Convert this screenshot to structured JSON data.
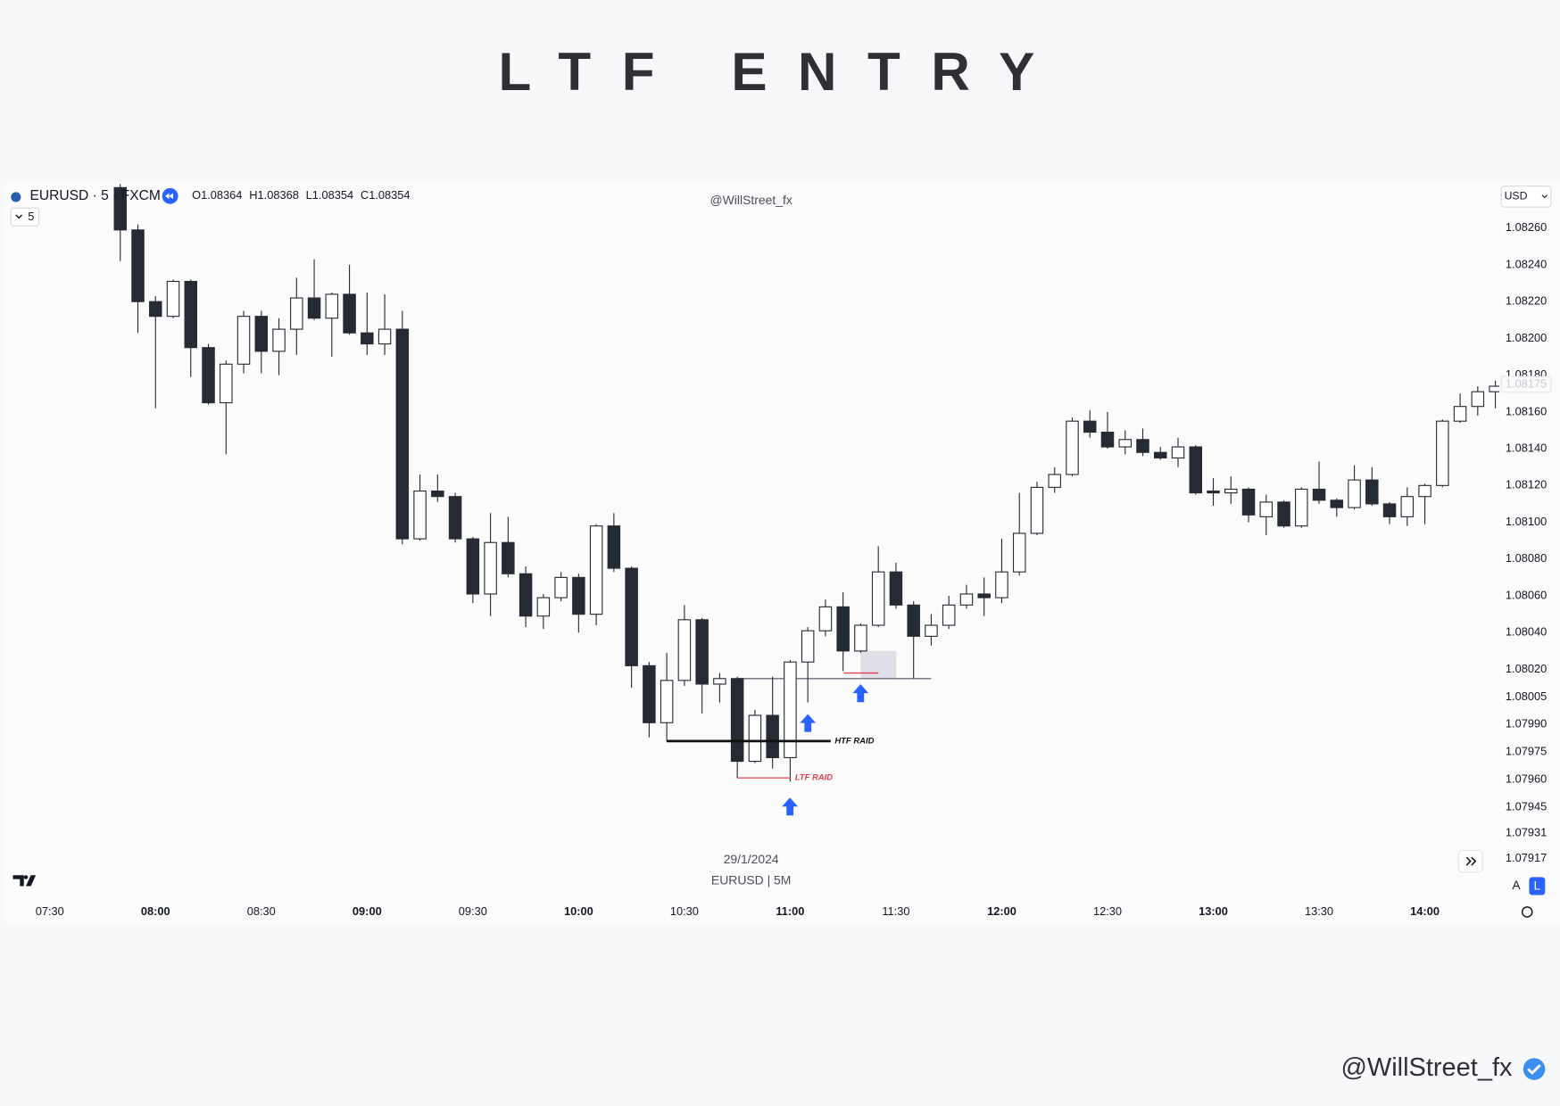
{
  "header": {
    "title": "LTF ENTRY",
    "handle": "@WillStreet_fx"
  },
  "toolbar": {
    "symbol": "EURUSD · 5 · FXCM",
    "interval": "5",
    "ohlc_legend": [
      {
        "label": "O",
        "value": 1.08364
      },
      {
        "label": "H",
        "value": 1.08368
      },
      {
        "label": "L",
        "value": 1.08354
      },
      {
        "label": "C",
        "value": 1.08354
      }
    ],
    "watermark": "@WillStreet_fx",
    "currency": "USD",
    "date": "29/1/2024",
    "pair_label": "EURUSD | 5M",
    "scale_buttons": [
      "A",
      "L"
    ]
  },
  "chart_data": {
    "type": "candlestick",
    "categories": [
      "07:30",
      null,
      null,
      null,
      null,
      null,
      "08:00",
      null,
      null,
      null,
      null,
      null,
      "08:30",
      null,
      null,
      null,
      null,
      null,
      "09:00",
      null,
      null,
      null,
      null,
      null,
      "09:30",
      null,
      null,
      null,
      null,
      null,
      "10:00",
      null,
      null,
      null,
      null,
      null,
      "10:30",
      null,
      null,
      null,
      null,
      null,
      "11:00",
      null,
      null,
      null,
      null,
      null,
      "11:30",
      null,
      null,
      null,
      null,
      null,
      "12:00",
      null,
      null,
      null,
      null,
      null,
      "12:30",
      null,
      null,
      null,
      null,
      null,
      "13:00",
      null,
      null,
      null,
      null,
      null,
      "13:30",
      null,
      null,
      null,
      null,
      null,
      "14:00",
      null,
      null,
      null,
      null
    ],
    "open": [
      null,
      null,
      null,
      null,
      1.08282,
      1.08259,
      1.0822,
      1.08212,
      1.08231,
      1.08195,
      1.08165,
      1.08186,
      1.08212,
      1.08193,
      1.08205,
      1.08222,
      1.08211,
      1.08224,
      1.08203,
      1.08197,
      1.08205,
      1.08091,
      1.08117,
      1.08114,
      1.08091,
      1.08061,
      1.08089,
      1.08072,
      1.08049,
      1.08059,
      1.0807,
      1.0805,
      1.08098,
      1.08075,
      1.08022,
      1.07991,
      1.08014,
      1.08047,
      1.08012,
      1.08015,
      1.0797,
      1.07995,
      1.07972,
      1.08024,
      1.08041,
      1.08054,
      1.0803,
      1.08044,
      1.08073,
      1.08055,
      1.08038,
      1.08044,
      1.08055,
      1.08061,
      1.08059,
      1.08073,
      1.08094,
      1.08119,
      1.08126,
      1.08155,
      1.08149,
      1.08141,
      1.08145,
      1.08138,
      1.08135,
      1.08141,
      1.08117,
      1.08116,
      1.08118,
      1.08103,
      1.08111,
      1.08098,
      1.08118,
      1.08112,
      1.08108,
      1.08123,
      1.0811,
      1.08103,
      1.08114,
      1.0812,
      1.08155,
      1.08163,
      1.08171
    ],
    "high": [
      null,
      null,
      null,
      null,
      1.08284,
      1.08262,
      1.08223,
      1.08232,
      1.08232,
      1.08197,
      1.08188,
      1.08215,
      1.08215,
      1.08211,
      1.08233,
      1.08243,
      1.08225,
      1.0824,
      1.08225,
      1.08224,
      1.08215,
      1.08126,
      1.08126,
      1.08116,
      1.08092,
      1.08105,
      1.08103,
      1.08076,
      1.08061,
      1.08073,
      1.08072,
      1.08099,
      1.08105,
      1.08076,
      1.08024,
      1.08029,
      1.08055,
      1.08048,
      1.08018,
      1.08016,
      1.07998,
      1.08016,
      1.08025,
      1.08043,
      1.08058,
      1.08062,
      1.08045,
      1.08087,
      1.08078,
      1.08057,
      1.0805,
      1.0806,
      1.08066,
      1.0807,
      1.08091,
      1.08116,
      1.08122,
      1.0813,
      1.08157,
      1.08161,
      1.0816,
      1.0815,
      1.08151,
      1.08141,
      1.08146,
      1.08142,
      1.08124,
      1.08125,
      1.08119,
      1.08115,
      1.08112,
      1.08119,
      1.08133,
      1.08113,
      1.08131,
      1.0813,
      1.08111,
      1.08119,
      1.08121,
      1.08156,
      1.0817,
      1.08174,
      1.08177
    ],
    "low": [
      null,
      null,
      null,
      null,
      1.08242,
      1.08203,
      1.08162,
      1.08211,
      1.08179,
      1.08164,
      1.08137,
      1.08181,
      1.08181,
      1.0818,
      1.08191,
      1.0821,
      1.0819,
      1.08202,
      1.08191,
      1.08191,
      1.08088,
      1.0809,
      1.08111,
      1.08089,
      1.08056,
      1.08049,
      1.0807,
      1.08043,
      1.08042,
      1.08057,
      1.0804,
      1.08044,
      1.08073,
      1.0801,
      1.07983,
      1.07981,
      1.08011,
      1.07996,
      1.08002,
      1.07961,
      1.07969,
      1.07966,
      1.07959,
      1.08002,
      1.08038,
      1.08019,
      1.08029,
      1.08043,
      1.08053,
      1.08015,
      1.08033,
      1.08042,
      1.08053,
      1.08049,
      1.08056,
      1.08071,
      1.08093,
      1.08116,
      1.08125,
      1.08146,
      1.0814,
      1.08137,
      1.08136,
      1.08134,
      1.0813,
      1.08115,
      1.08109,
      1.0811,
      1.081,
      1.08093,
      1.08097,
      1.08097,
      1.0811,
      1.08103,
      1.08107,
      1.08109,
      1.08099,
      1.08098,
      1.08099,
      1.08119,
      1.08154,
      1.08158,
      1.08162
    ],
    "close": [
      null,
      null,
      null,
      null,
      1.08259,
      1.0822,
      1.08212,
      1.08231,
      1.08195,
      1.08165,
      1.08186,
      1.08212,
      1.08193,
      1.08205,
      1.08222,
      1.08211,
      1.08224,
      1.08203,
      1.08197,
      1.08205,
      1.08091,
      1.08117,
      1.08114,
      1.08091,
      1.08061,
      1.08089,
      1.08072,
      1.08049,
      1.08059,
      1.0807,
      1.0805,
      1.08098,
      1.08075,
      1.08022,
      1.07991,
      1.08014,
      1.08047,
      1.08012,
      1.08015,
      1.0797,
      1.07995,
      1.07972,
      1.08024,
      1.08041,
      1.08054,
      1.0803,
      1.08044,
      1.08073,
      1.08055,
      1.08038,
      1.08044,
      1.08055,
      1.08061,
      1.08059,
      1.08073,
      1.08094,
      1.08119,
      1.08126,
      1.08155,
      1.08149,
      1.08141,
      1.08145,
      1.08138,
      1.08135,
      1.08141,
      1.08116,
      1.08116,
      1.08118,
      1.08104,
      1.08111,
      1.08098,
      1.08118,
      1.08112,
      1.08108,
      1.08123,
      1.0811,
      1.08103,
      1.08114,
      1.0812,
      1.08155,
      1.08163,
      1.08171,
      1.08174
    ],
    "ylim": [
      1.07897,
      1.08285
    ],
    "yticks": [
      {
        "value": 1.0826,
        "label": "1.08260"
      },
      {
        "value": 1.0824,
        "label": "1.08240"
      },
      {
        "value": 1.0822,
        "label": "1.08220"
      },
      {
        "value": 1.082,
        "label": "1.08200"
      },
      {
        "value": 1.0818,
        "label": "1.08180"
      },
      {
        "value": 1.0816,
        "label": "1.08160"
      },
      {
        "value": 1.0814,
        "label": "1.08140"
      },
      {
        "value": 1.0812,
        "label": "1.08120"
      },
      {
        "value": 1.081,
        "label": "1.08100"
      },
      {
        "value": 1.0808,
        "label": "1.08080"
      },
      {
        "value": 1.0806,
        "label": "1.08060"
      },
      {
        "value": 1.0804,
        "label": "1.08040"
      },
      {
        "value": 1.0802,
        "label": "1.08020"
      },
      1.08005,
      {
        "value": 1.0799,
        "label": "1.07990"
      },
      1.07975,
      {
        "value": 1.0796,
        "label": "1.07960"
      },
      1.07945,
      1.07931,
      1.07917
    ],
    "price_label": 1.08175,
    "grid": false,
    "up_color": "#ffffff",
    "down_color": "#262a33",
    "edge_color": "#262a33",
    "annotations": [
      {
        "text": "HTF RAID",
        "value": 1.07981,
        "color": "#111111"
      },
      {
        "text": "LTF RAID",
        "value": 1.07961,
        "color": "#e0414f"
      }
    ],
    "levels": [
      {
        "value": 1.08015,
        "color": "#6b6e78"
      },
      {
        "value": 1.08018,
        "color": "#e0414f"
      }
    ],
    "zone": {
      "range": [
        1.08015,
        1.0803
      ],
      "color": "#d8d8e2"
    }
  }
}
